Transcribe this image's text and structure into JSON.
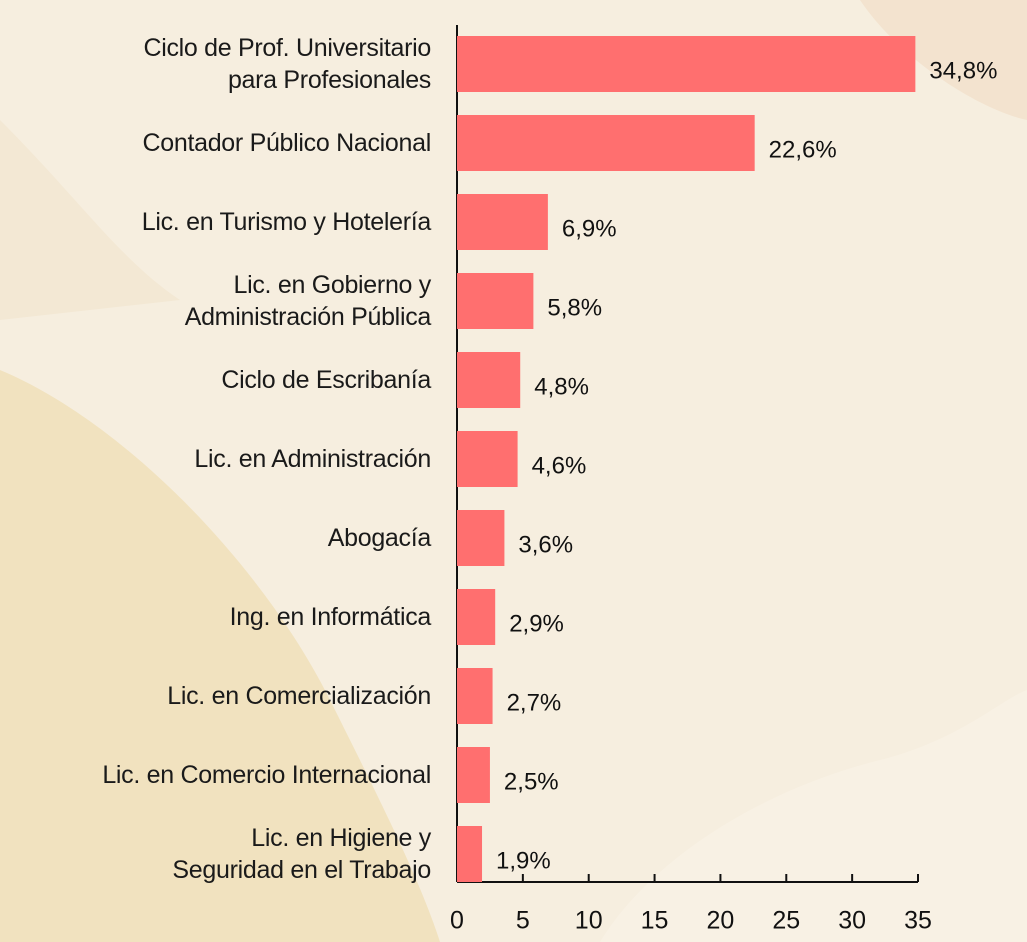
{
  "chart_data": {
    "type": "bar",
    "orientation": "horizontal",
    "categories": [
      "Ciclo de Prof. Universitario\npara Profesionales",
      "Contador Público Nacional",
      "Lic. en Turismo y Hotelería",
      "Lic. en Gobierno y\nAdministración Pública",
      "Ciclo de Escribanía",
      "Lic. en Administración",
      "Abogacía",
      "Ing. en Informática",
      "Lic. en Comercialización",
      "Lic. en Comercio Internacional",
      "Lic. en Higiene y\nSeguridad en el Trabajo"
    ],
    "values": [
      34.8,
      22.6,
      6.9,
      5.8,
      4.8,
      4.6,
      3.6,
      2.9,
      2.7,
      2.5,
      1.9
    ],
    "value_labels": [
      "34,8%",
      "22,6%",
      "6,9%",
      "5,8%",
      "4,8%",
      "4,6%",
      "3,6%",
      "2,9%",
      "2,7%",
      "2,5%",
      "1,9%"
    ],
    "color": "#ff6f6f",
    "xlim": [
      0,
      35
    ],
    "xticks": [
      0,
      5,
      10,
      15,
      20,
      25,
      30,
      35
    ],
    "grid": false
  }
}
